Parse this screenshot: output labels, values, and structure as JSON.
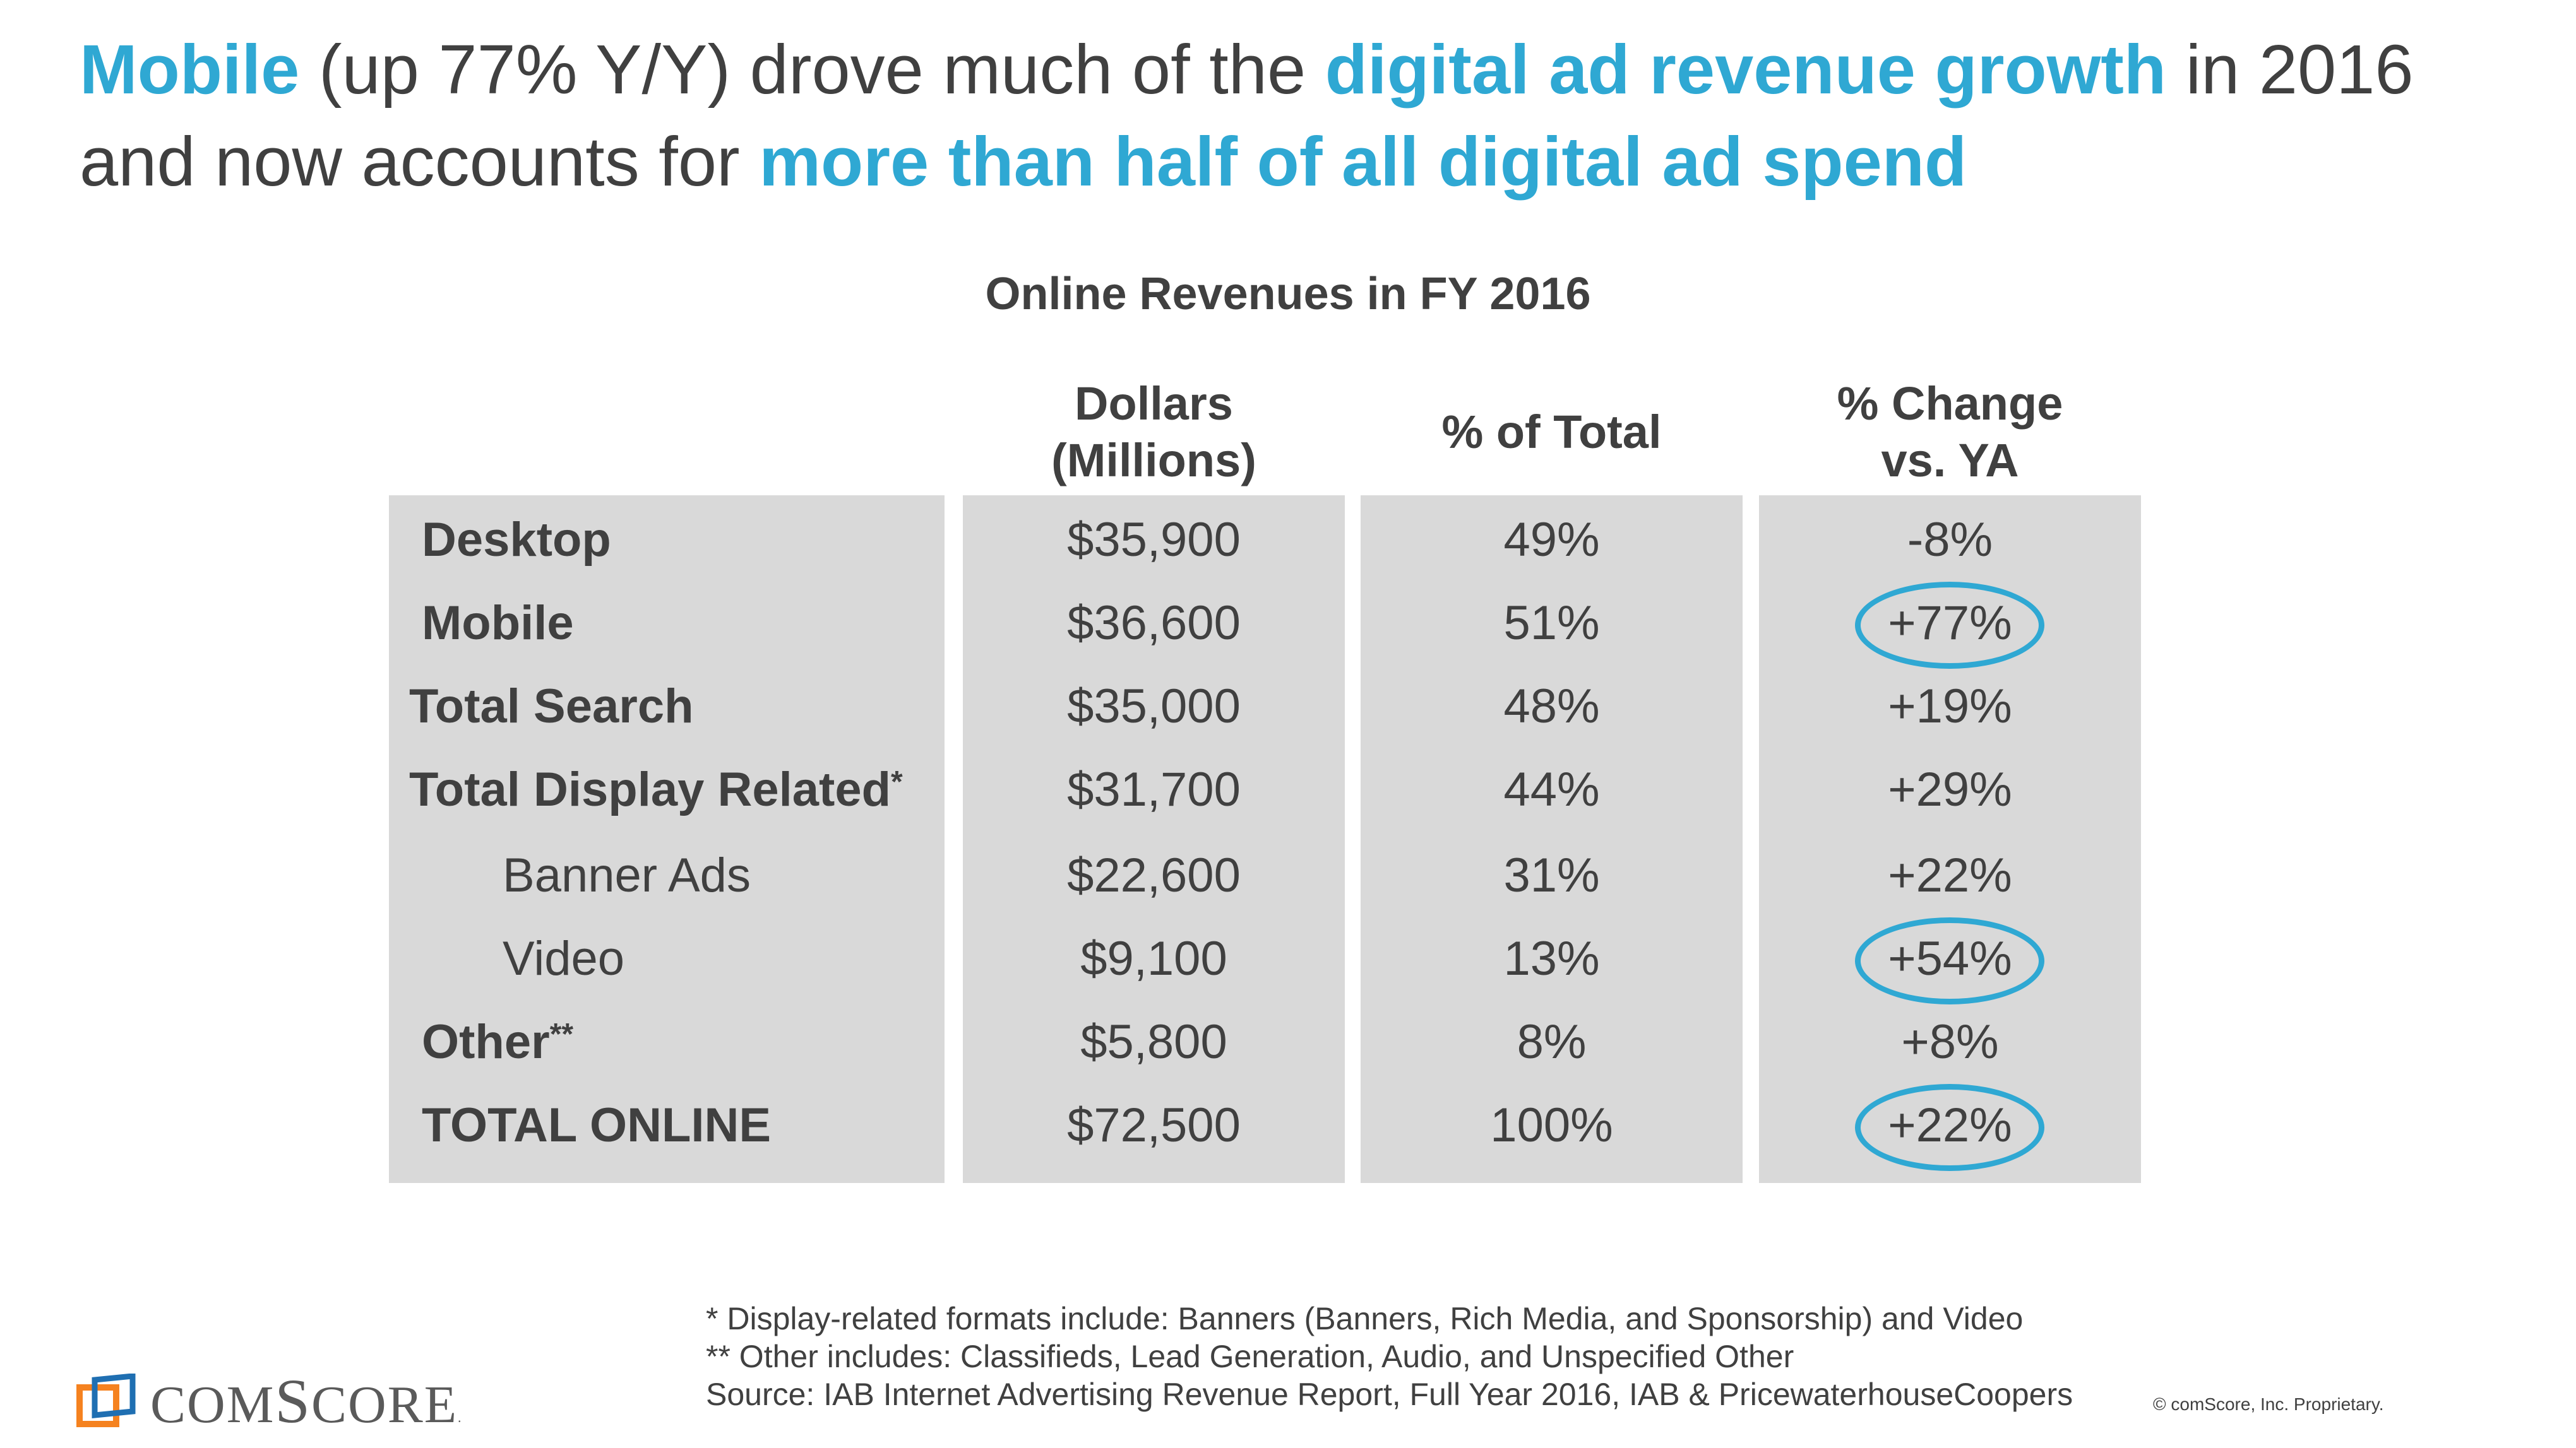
{
  "headline": {
    "seg1": "Mobile",
    "seg2": " (up 77% Y/Y) drove much of the ",
    "seg3": "digital ad revenue growth",
    "seg4": " in 2016 and now accounts for ",
    "seg5": "more than half of all digital ad spend"
  },
  "table": {
    "title": "Online Revenues in FY 2016",
    "headers": {
      "dollars_line1": "Dollars",
      "dollars_line2": "(Millions)",
      "pct_total": "% of Total",
      "change_line1": "% Change",
      "change_line2": "vs. YA"
    },
    "rows": [
      {
        "label": "Desktop",
        "dollars": "$35,900",
        "pct": "49%",
        "change": "-8%"
      },
      {
        "label": "Mobile",
        "dollars": "$36,600",
        "pct": "51%",
        "change": "+77%"
      },
      {
        "label": "Total Search",
        "dollars": "$35,000",
        "pct": "48%",
        "change": "+19%"
      },
      {
        "label": "Total Display Related",
        "marker": "*",
        "dollars": "$31,700",
        "pct": "44%",
        "change": "+29%"
      },
      {
        "label": "Banner Ads",
        "dollars": "$22,600",
        "pct": "31%",
        "change": "+22%"
      },
      {
        "label": "Video",
        "dollars": "$9,100",
        "pct": "13%",
        "change": "+54%"
      },
      {
        "label": "Other",
        "marker": "**",
        "dollars": "$5,800",
        "pct": "8%",
        "change": "+8%"
      },
      {
        "label": "TOTAL ONLINE",
        "dollars": "$72,500",
        "pct": "100%",
        "change": "+22%"
      }
    ]
  },
  "footnotes": {
    "note1": "*   Display-related formats include: Banners (Banners, Rich Media, and Sponsorship) and Video",
    "note2": "** Other includes: Classifieds, Lead Generation, Audio, and Unspecified Other",
    "source": "Source: IAB Internet Advertising Revenue Report, Full Year 2016, IAB & PricewaterhouseCoopers"
  },
  "logo": {
    "name": "comScore",
    "brand_part1": "COM",
    "brand_part2": "S",
    "brand_part3": "CORE",
    "registered": "."
  },
  "copyright": "© comScore, Inc. Proprietary.",
  "colors": {
    "accent": "#2fa8d3",
    "text": "#404040",
    "cell_bg": "#d9d9d9",
    "logo_orange": "#f5821f",
    "logo_blue": "#1f6fb2"
  }
}
